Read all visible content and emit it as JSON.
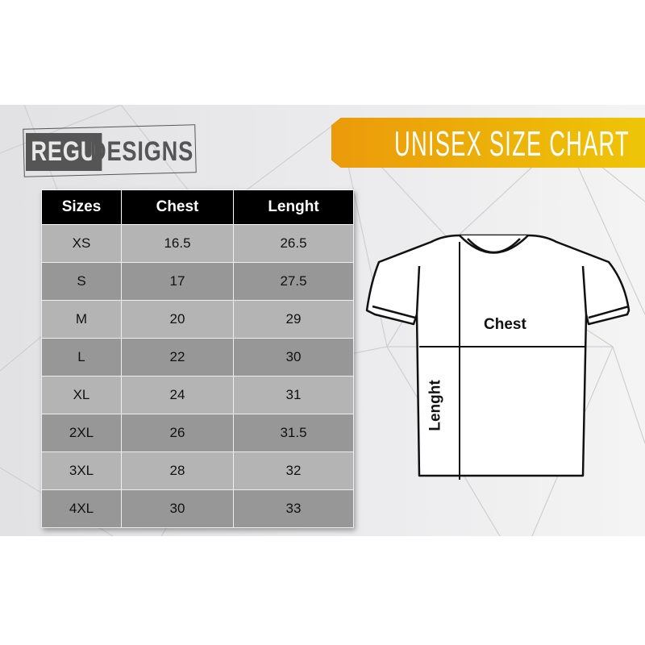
{
  "brand": {
    "logo_part1": "REGU",
    "logo_part2": "DESIGNS"
  },
  "banner": {
    "title": "UNISEX SIZE CHART",
    "colors": [
      "#eb9a0a",
      "#eec508"
    ]
  },
  "table": {
    "headers": [
      "Sizes",
      "Chest",
      "Lenght"
    ],
    "rows": [
      [
        "XS",
        "16.5",
        "26.5"
      ],
      [
        "S",
        "17",
        "27.5"
      ],
      [
        "M",
        "20",
        "29"
      ],
      [
        "L",
        "22",
        "30"
      ],
      [
        "XL",
        "24",
        "31"
      ],
      [
        "2XL",
        "26",
        "31.5"
      ],
      [
        "3XL",
        "28",
        "32"
      ],
      [
        "4XL",
        "30",
        "33"
      ]
    ]
  },
  "diagram": {
    "chest_label": "Chest",
    "length_label": "Lenght"
  }
}
